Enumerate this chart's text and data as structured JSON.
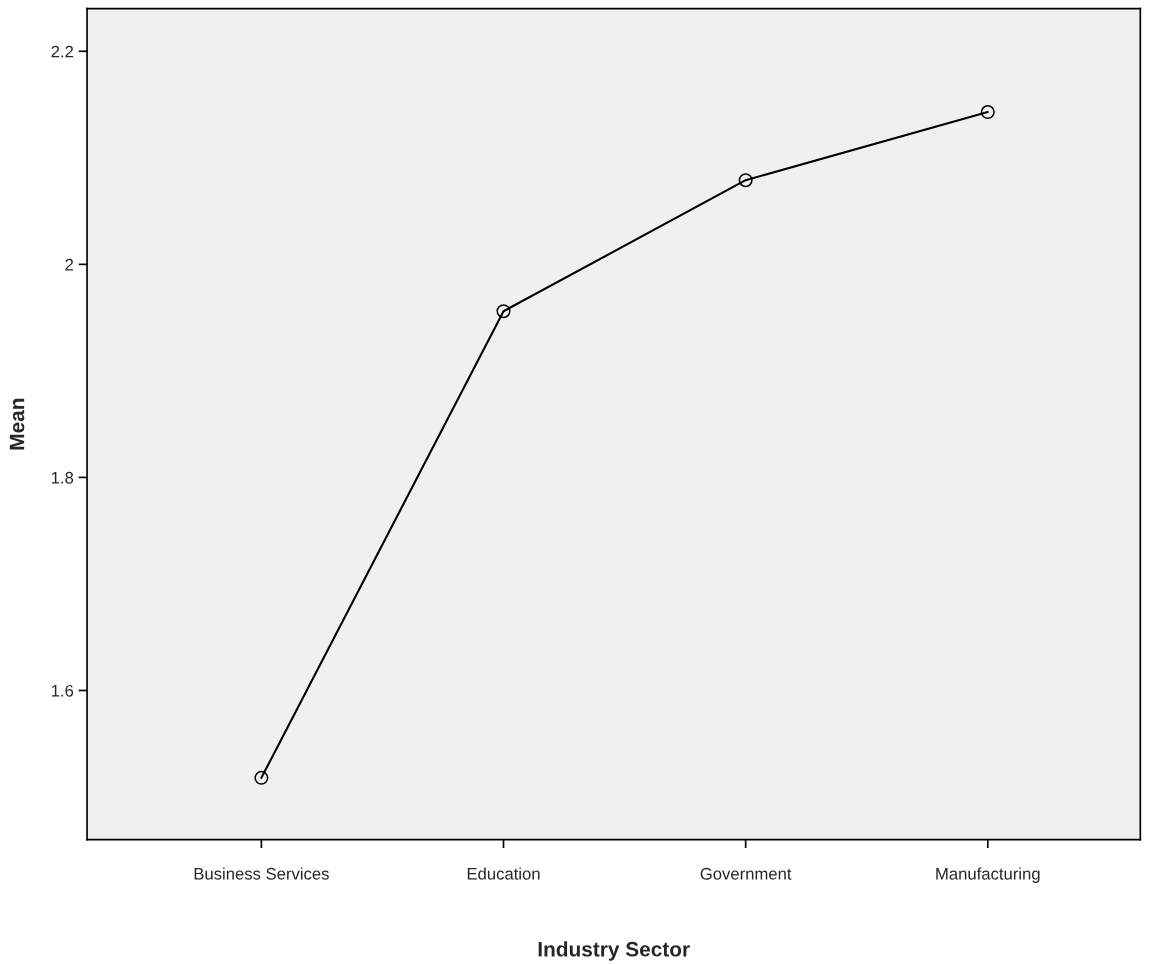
{
  "chart_data": {
    "type": "line",
    "xlabel": "Industry Sector",
    "ylabel": "Mean",
    "categories": [
      "Business Services",
      "Education",
      "Government",
      "Manufacturing"
    ],
    "series": [
      {
        "color": "#000000",
        "values": [
          1.518,
          1.956,
          2.079,
          2.143
        ]
      }
    ],
    "ylim": [
      1.46,
      2.24
    ],
    "yticks": [
      1.6,
      1.8,
      {
        "value": 2.0,
        "label": "2"
      },
      2.2
    ],
    "marker": "circle",
    "line_style": "solid",
    "grid": false,
    "legend": false
  }
}
